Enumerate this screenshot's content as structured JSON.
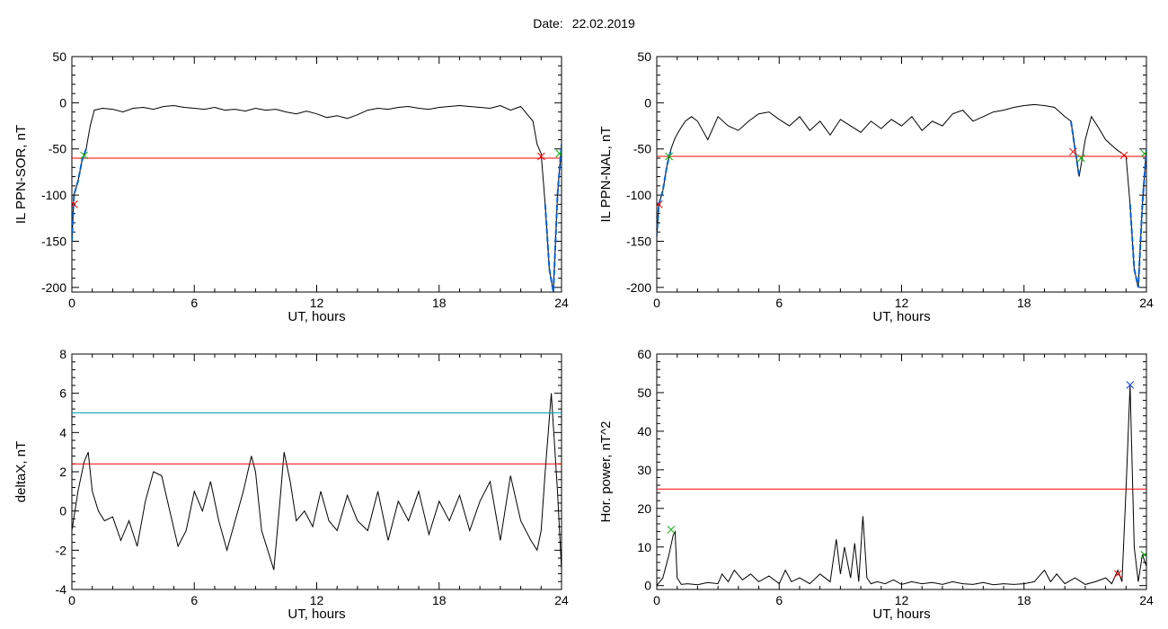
{
  "header": {
    "date_label": "Date:",
    "date_value": "22.02.2019"
  },
  "colors": {
    "trace": "#000000",
    "threshold": "#ff0000",
    "upper_threshold": "#00a0b0",
    "segment": "#0060d0",
    "marker_red": "#ff0000",
    "marker_green": "#00b000",
    "marker_blue": "#1040ff"
  },
  "chart_data": [
    {
      "type": "line",
      "xlabel": "UT, hours",
      "ylabel": "IL PPN-SOR, nT",
      "xlim": [
        0,
        24
      ],
      "ylim": [
        -205,
        50
      ],
      "xticks": [
        0,
        6,
        12,
        18,
        24
      ],
      "yticks": [
        -200,
        -150,
        -100,
        -50,
        0,
        50
      ],
      "series": [
        {
          "role": "trace",
          "x": [
            0,
            0.1,
            0.3,
            0.5,
            0.7,
            0.9,
            1.1,
            1.5,
            2.0,
            2.5,
            3.0,
            3.5,
            4.0,
            4.5,
            5.0,
            5.5,
            6.0,
            6.5,
            7.0,
            7.5,
            8.0,
            8.5,
            9.0,
            9.5,
            10.0,
            10.5,
            11.0,
            11.5,
            12.0,
            12.5,
            13.0,
            13.5,
            14.0,
            14.5,
            15.0,
            15.5,
            16.0,
            16.5,
            17.0,
            17.5,
            18.0,
            18.5,
            19.0,
            19.5,
            20.0,
            20.5,
            21.0,
            21.5,
            22.0,
            22.3,
            22.6,
            22.8,
            23.0,
            23.2,
            23.4,
            23.6,
            23.8,
            24.0
          ],
          "y": [
            -150,
            -100,
            -85,
            -62,
            -50,
            -25,
            -8,
            -6,
            -7,
            -10,
            -6,
            -5,
            -7,
            -4,
            -3,
            -5,
            -6,
            -7,
            -5,
            -8,
            -7,
            -9,
            -6,
            -8,
            -7,
            -10,
            -12,
            -9,
            -12,
            -16,
            -14,
            -17,
            -13,
            -8,
            -6,
            -7,
            -5,
            -4,
            -6,
            -7,
            -5,
            -4,
            -3,
            -4,
            -5,
            -6,
            -3,
            -8,
            -4,
            -12,
            -20,
            -45,
            -55,
            -110,
            -180,
            -205,
            -100,
            -45
          ]
        },
        {
          "role": "threshold",
          "x": [
            0,
            24
          ],
          "y": [
            -60,
            -60
          ]
        },
        {
          "role": "segment",
          "x": [
            0,
            0.1,
            0.3,
            0.5,
            0.7
          ],
          "y": [
            -150,
            -100,
            -85,
            -62,
            -50
          ]
        },
        {
          "role": "segment",
          "x": [
            23.2,
            23.4,
            23.6,
            23.8,
            24.0
          ],
          "y": [
            -110,
            -180,
            -205,
            -100,
            -45
          ]
        }
      ],
      "markers": [
        {
          "x": 0.1,
          "y": -110,
          "color": "red"
        },
        {
          "x": 0.6,
          "y": -57,
          "color": "green"
        },
        {
          "x": 23.0,
          "y": -58,
          "color": "red"
        },
        {
          "x": 23.9,
          "y": -55,
          "color": "green"
        }
      ]
    },
    {
      "type": "line",
      "xlabel": "UT, hours",
      "ylabel": "IL PPN-NAL, nT",
      "xlim": [
        0,
        24
      ],
      "ylim": [
        -205,
        50
      ],
      "xticks": [
        0,
        6,
        12,
        18,
        24
      ],
      "yticks": [
        -200,
        -150,
        -100,
        -50,
        0,
        50
      ],
      "series": [
        {
          "role": "trace",
          "x": [
            0,
            0.1,
            0.3,
            0.5,
            0.7,
            0.9,
            1.1,
            1.4,
            1.7,
            2.0,
            2.5,
            3.0,
            3.5,
            4.0,
            4.5,
            5.0,
            5.5,
            6.0,
            6.5,
            7.0,
            7.5,
            8.0,
            8.5,
            9.0,
            9.5,
            10.0,
            10.5,
            11.0,
            11.5,
            12.0,
            12.5,
            13.0,
            13.5,
            14.0,
            14.5,
            15.0,
            15.5,
            16.0,
            16.5,
            17.0,
            17.5,
            18.0,
            18.5,
            19.0,
            19.5,
            20.0,
            20.3,
            20.5,
            20.7,
            21.0,
            21.3,
            21.6,
            22.0,
            22.5,
            22.8,
            23.0,
            23.2,
            23.4,
            23.6,
            23.8,
            24.0
          ],
          "y": [
            -145,
            -110,
            -95,
            -68,
            -50,
            -38,
            -30,
            -20,
            -15,
            -20,
            -40,
            -15,
            -25,
            -30,
            -20,
            -12,
            -10,
            -18,
            -25,
            -15,
            -30,
            -20,
            -35,
            -18,
            -25,
            -32,
            -20,
            -28,
            -18,
            -25,
            -15,
            -30,
            -20,
            -25,
            -12,
            -8,
            -20,
            -15,
            -10,
            -8,
            -5,
            -3,
            -2,
            -3,
            -5,
            -15,
            -20,
            -50,
            -80,
            -40,
            -15,
            -25,
            -40,
            -50,
            -55,
            -58,
            -110,
            -180,
            -200,
            -110,
            -50
          ]
        },
        {
          "role": "threshold",
          "x": [
            0,
            24
          ],
          "y": [
            -58,
            -58
          ]
        },
        {
          "role": "segment",
          "x": [
            0,
            0.1,
            0.3,
            0.5,
            0.7
          ],
          "y": [
            -145,
            -110,
            -95,
            -68,
            -50
          ]
        },
        {
          "role": "segment",
          "x": [
            20.3,
            20.5,
            20.7
          ],
          "y": [
            -20,
            -50,
            -80
          ]
        },
        {
          "role": "segment",
          "x": [
            23.2,
            23.4,
            23.6,
            23.8,
            24.0
          ],
          "y": [
            -110,
            -180,
            -200,
            -110,
            -50
          ]
        }
      ],
      "markers": [
        {
          "x": 0.1,
          "y": -110,
          "color": "red"
        },
        {
          "x": 0.6,
          "y": -58,
          "color": "green"
        },
        {
          "x": 20.4,
          "y": -53,
          "color": "red"
        },
        {
          "x": 20.8,
          "y": -60,
          "color": "green"
        },
        {
          "x": 22.9,
          "y": -57,
          "color": "red"
        },
        {
          "x": 23.9,
          "y": -55,
          "color": "green"
        }
      ]
    },
    {
      "type": "line",
      "xlabel": "UT, hours",
      "ylabel": "deltaX, nT",
      "xlim": [
        0,
        24
      ],
      "ylim": [
        -4,
        8
      ],
      "xticks": [
        0,
        6,
        12,
        18,
        24
      ],
      "yticks": [
        -4,
        -2,
        0,
        2,
        4,
        6,
        8
      ],
      "series": [
        {
          "role": "trace",
          "x": [
            0,
            0.3,
            0.6,
            0.8,
            1.0,
            1.3,
            1.6,
            2.0,
            2.4,
            2.8,
            3.2,
            3.6,
            4.0,
            4.4,
            4.8,
            5.2,
            5.6,
            6.0,
            6.4,
            6.8,
            7.2,
            7.6,
            8.0,
            8.4,
            8.8,
            9.0,
            9.3,
            9.6,
            9.9,
            10.2,
            10.4,
            10.7,
            11.0,
            11.4,
            11.8,
            12.2,
            12.6,
            13.0,
            13.5,
            14.0,
            14.5,
            15.0,
            15.5,
            16.0,
            16.5,
            17.0,
            17.5,
            18.0,
            18.5,
            19.0,
            19.5,
            20.0,
            20.5,
            21.0,
            21.5,
            22.0,
            22.5,
            22.8,
            23.0,
            23.2,
            23.5,
            23.8,
            24.0
          ],
          "y": [
            -1.0,
            1.0,
            2.5,
            3.0,
            1.0,
            0.0,
            -0.5,
            -0.3,
            -1.5,
            -0.5,
            -1.8,
            0.5,
            2.0,
            1.8,
            0.0,
            -1.8,
            -1.0,
            1.0,
            0.0,
            1.5,
            -0.5,
            -2.0,
            -0.5,
            1.0,
            2.8,
            2.0,
            -1.0,
            -2.0,
            -3.0,
            0.5,
            3.0,
            1.5,
            -0.5,
            0.0,
            -0.8,
            1.0,
            -0.5,
            -1.0,
            0.8,
            -0.5,
            -1.0,
            1.0,
            -1.5,
            0.5,
            -0.5,
            1.0,
            -1.2,
            0.5,
            -0.5,
            0.8,
            -1.0,
            0.5,
            1.5,
            -1.5,
            1.8,
            -0.5,
            -1.5,
            -2.0,
            -1.0,
            2.0,
            6.0,
            1.0,
            -3.0
          ]
        },
        {
          "role": "upper_threshold",
          "x": [
            0,
            24
          ],
          "y": [
            5.0,
            5.0
          ]
        },
        {
          "role": "threshold",
          "x": [
            0,
            24
          ],
          "y": [
            2.4,
            2.4
          ]
        }
      ],
      "markers": []
    },
    {
      "type": "line",
      "xlabel": "UT, hours",
      "ylabel": "Hor. power, nT^2",
      "xlim": [
        0,
        24
      ],
      "ylim": [
        -1,
        60
      ],
      "xticks": [
        0,
        6,
        12,
        18,
        24
      ],
      "yticks": [
        0,
        10,
        20,
        30,
        40,
        50,
        60
      ],
      "series": [
        {
          "role": "trace",
          "x": [
            0,
            0.3,
            0.6,
            0.8,
            0.9,
            1.0,
            1.2,
            1.5,
            2.0,
            2.5,
            3.0,
            3.2,
            3.5,
            3.8,
            4.2,
            4.6,
            5.0,
            5.5,
            6.0,
            6.3,
            6.6,
            7.0,
            7.5,
            8.0,
            8.5,
            8.8,
            9.0,
            9.2,
            9.5,
            9.7,
            9.9,
            10.1,
            10.3,
            10.5,
            10.8,
            11.2,
            11.6,
            12.0,
            12.5,
            13.0,
            13.5,
            14.0,
            14.5,
            15.0,
            15.5,
            16.0,
            16.5,
            17.0,
            17.5,
            18.0,
            18.5,
            19.0,
            19.3,
            19.6,
            20.0,
            20.5,
            21.0,
            21.5,
            22.0,
            22.3,
            22.6,
            22.8,
            23.0,
            23.2,
            23.4,
            23.6,
            23.8,
            24.0
          ],
          "y": [
            0,
            2,
            8,
            13,
            14,
            2,
            0.3,
            0.5,
            0.2,
            0.8,
            0.5,
            3,
            1,
            4,
            1.5,
            3,
            1,
            2.5,
            0.5,
            4,
            1,
            2,
            0.5,
            3,
            1,
            12,
            3,
            10,
            2,
            11,
            1,
            18,
            2,
            0.5,
            1,
            0.5,
            1.5,
            0.3,
            1,
            0.5,
            0.8,
            0.3,
            1,
            0.5,
            0.3,
            0.8,
            0.2,
            0.5,
            0.3,
            0.5,
            1,
            4,
            1,
            3,
            0.5,
            2,
            0.3,
            1,
            2,
            0.5,
            4,
            1,
            25,
            52,
            10,
            1,
            8,
            5
          ]
        },
        {
          "role": "threshold",
          "x": [
            0,
            24
          ],
          "y": [
            25,
            25
          ]
        }
      ],
      "markers": [
        {
          "x": 0.7,
          "y": 14.5,
          "color": "green"
        },
        {
          "x": 22.6,
          "y": 3,
          "color": "red"
        },
        {
          "x": 23.2,
          "y": 52,
          "color": "blue"
        },
        {
          "x": 23.9,
          "y": 8,
          "color": "green"
        }
      ]
    }
  ]
}
